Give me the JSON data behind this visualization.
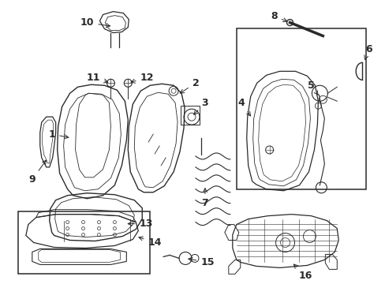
{
  "bg_color": "#ffffff",
  "line_color": "#2a2a2a",
  "label_color": "#000000",
  "dpi": 100,
  "figsize": [
    4.89,
    3.6
  ]
}
